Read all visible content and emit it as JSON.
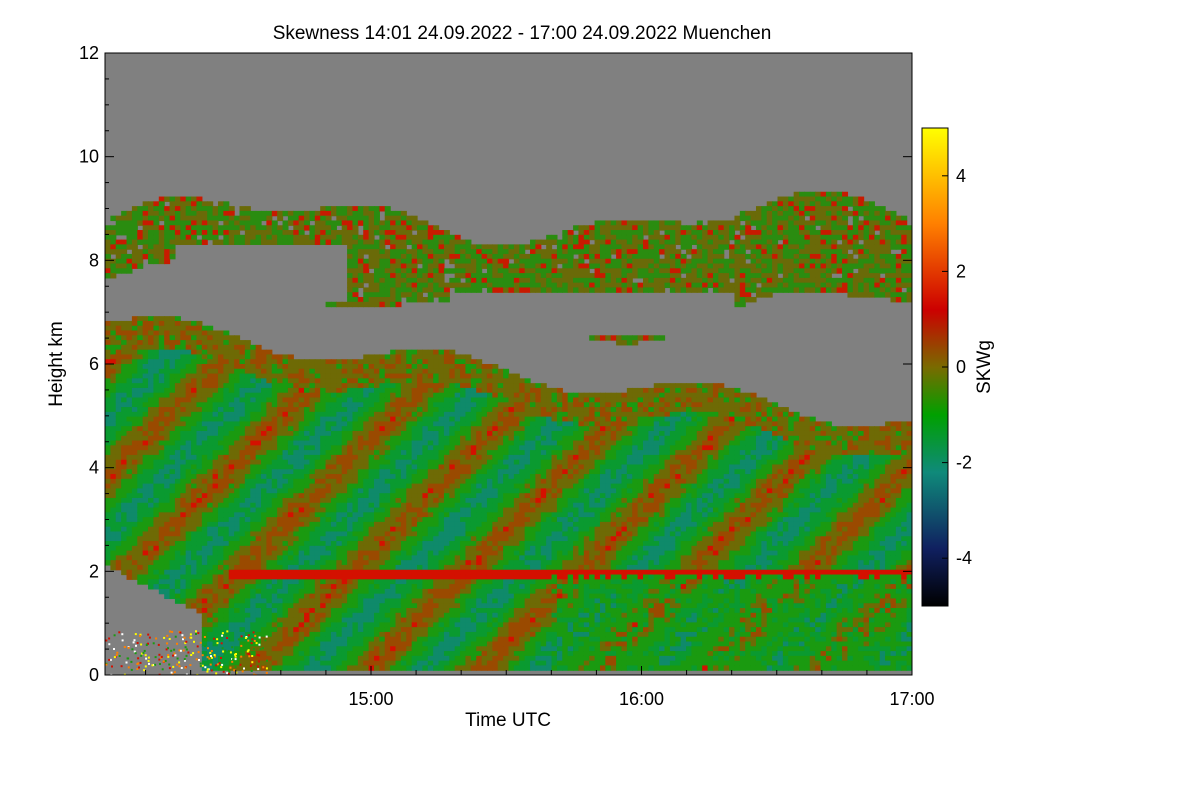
{
  "chart_data": {
    "type": "heatmap",
    "title": "Skewness   14:01 24.09.2022 - 17:00 24.09.2022 Muenchen",
    "xlabel": "Time UTC",
    "ylabel": "Height km",
    "xlim": [
      "14:01",
      "17:00"
    ],
    "ylim": [
      0,
      12
    ],
    "x_ticks": [
      "15:00",
      "16:00",
      "17:00"
    ],
    "y_ticks": [
      "0",
      "2",
      "4",
      "6",
      "8",
      "10",
      "12"
    ],
    "colorbar": {
      "label": "SKWg",
      "range": [
        -5,
        5
      ],
      "ticks": [
        "4",
        "2",
        "0",
        "-2",
        "-4"
      ],
      "colors": [
        "#000000",
        "#10206a",
        "#0f8a7a",
        "#00a000",
        "#7a6a00",
        "#cc0000",
        "#ff8000",
        "#ffff00"
      ]
    },
    "background_color": "#808080",
    "features": {
      "upper_cloud_layer_km": [
        7,
        9
      ],
      "lower_layer_top_km": [
        5,
        7
      ],
      "inversion_height_km": 2
    }
  }
}
